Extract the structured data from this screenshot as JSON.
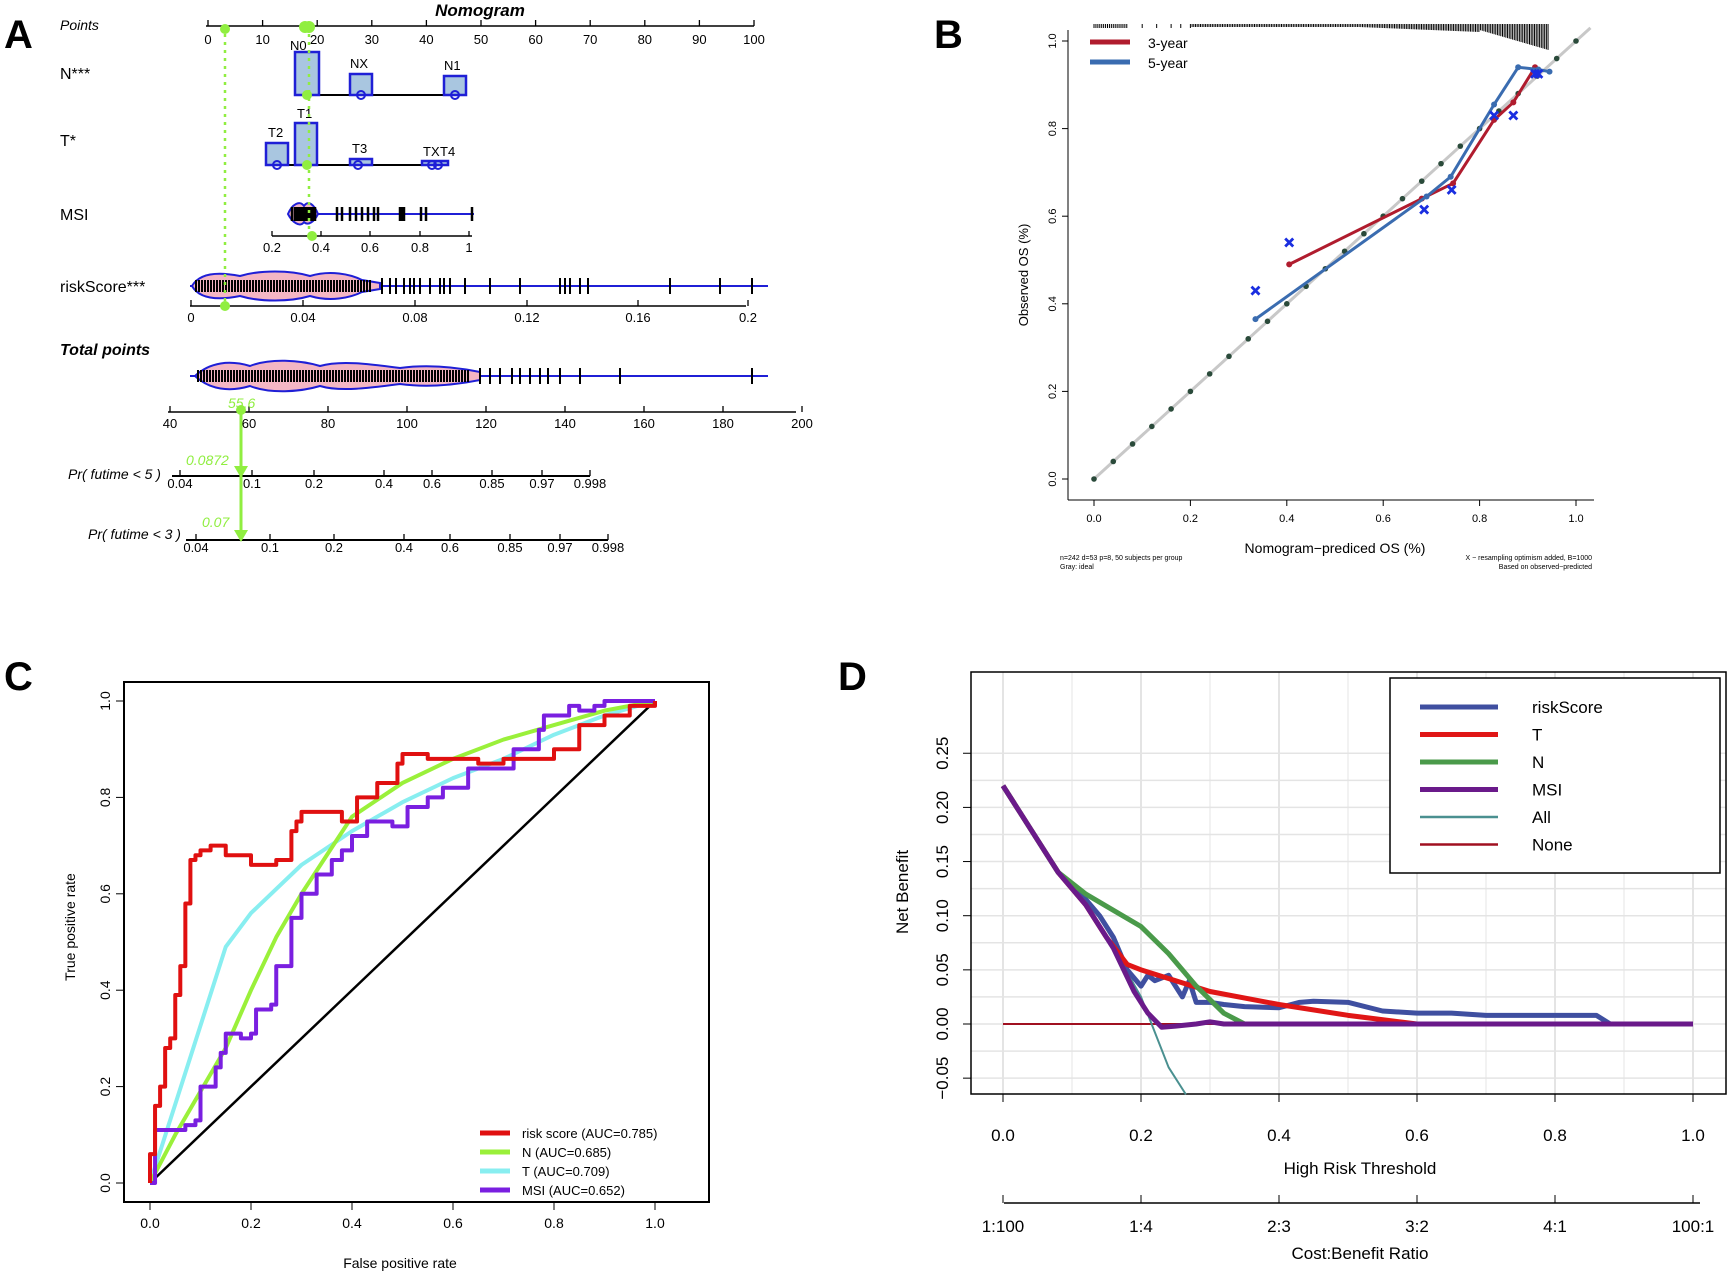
{
  "colors": {
    "blue": "#1f1fd6",
    "pink": "#f4b6c4",
    "boxfill": "#a9c6e0",
    "green": "#90ee40",
    "red3": "#b01c2e",
    "blue5": "#3a6cb0",
    "ideal": "#c8c8c8",
    "rocRed": "#e01010",
    "rocN": "#9af03a",
    "rocT": "#88eef0",
    "rocMSI": "#7a1fe0",
    "dcaRisk": "#3f4fa0",
    "dcaT": "#e01616",
    "dcaN": "#4a9a4a",
    "dcaMSI": "#6a1a8a",
    "dcaAll": "#4a9090",
    "dcaNone": "#a01020"
  },
  "panel_labels": {
    "a": "A",
    "b": "B",
    "c": "C",
    "d": "D"
  },
  "nomogram": {
    "title": "Nomogram",
    "rows": {
      "points": "Points",
      "n": "N***",
      "t": "T*",
      "msi": "MSI",
      "risk": "riskScore***",
      "total": "Total points",
      "pr5": "Pr( futime < 5 )",
      "pr3": "Pr( futime < 3 )"
    },
    "points_ticks": [
      "0",
      "10",
      "20",
      "30",
      "40",
      "50",
      "60",
      "70",
      "80",
      "90",
      "100"
    ],
    "n_levels": [
      "N0",
      "NX",
      "N1"
    ],
    "t_levels": [
      "T2",
      "T1",
      "T3",
      "TX",
      "T4"
    ],
    "msi_ticks": [
      "0.2",
      "0.4",
      "0.6",
      "0.8",
      "1"
    ],
    "risk_ticks": [
      "0",
      "0.04",
      "0.08",
      "0.12",
      "0.16",
      "0.2"
    ],
    "total_ticks": [
      "40",
      "60",
      "80",
      "100",
      "120",
      "140",
      "160",
      "180",
      "200"
    ],
    "pr_ticks": [
      "0.04",
      "0.1",
      "0.2",
      "0.4",
      "0.6",
      "0.85",
      "0.97",
      "0.998"
    ],
    "annotations": {
      "total": "55.6",
      "pr5": "0.0872",
      "pr3": "0.07"
    }
  },
  "chart_data": [
    {
      "panel": "B",
      "type": "line",
      "xlabel": "Nomogram−prediced OS (%)",
      "ylabel": "Observed OS (%)",
      "xlim": [
        0,
        1
      ],
      "ylim": [
        0,
        1
      ],
      "ticks": [
        "0.0",
        "0.2",
        "0.4",
        "0.6",
        "0.8",
        "1.0"
      ],
      "legend": [
        "3-year",
        "5-year"
      ],
      "series": [
        {
          "name": "3-year",
          "x": [
            0.405,
            0.68,
            0.745,
            0.83,
            0.87,
            0.915
          ],
          "y": [
            0.49,
            0.64,
            0.675,
            0.82,
            0.86,
            0.94
          ]
        },
        {
          "name": "5-year",
          "x": [
            0.335,
            0.69,
            0.74,
            0.83,
            0.88,
            0.922,
            0.945
          ],
          "y": [
            0.365,
            0.645,
            0.69,
            0.855,
            0.94,
            0.935,
            0.93
          ]
        }
      ],
      "crosses": {
        "x": [
          0.335,
          0.405,
          0.685,
          0.742,
          0.83,
          0.87,
          0.915,
          0.922
        ],
        "y": [
          0.43,
          0.54,
          0.615,
          0.66,
          0.83,
          0.83,
          0.925,
          0.925
        ]
      },
      "footnote_left": [
        "n=242 d=53 p=8, 50 subjects per group",
        "Gray: ideal"
      ],
      "footnote_right": [
        "X − resampling optimism added, B=1000",
        "Based on observed−predicted"
      ]
    },
    {
      "panel": "C",
      "type": "line",
      "xlabel": "False positive rate",
      "ylabel": "True positive rate",
      "xlim": [
        0,
        1
      ],
      "ylim": [
        0,
        1
      ],
      "ticks": [
        "0.0",
        "0.2",
        "0.4",
        "0.6",
        "0.8",
        "1.0"
      ],
      "series": [
        {
          "name": "risk score (AUC=0.785)",
          "x": [
            0,
            0,
            0.01,
            0.01,
            0.02,
            0.03,
            0.03,
            0.04,
            0.05,
            0.06,
            0.07,
            0.07,
            0.08,
            0.08,
            0.09,
            0.1,
            0.12,
            0.15,
            0.2,
            0.25,
            0.28,
            0.29,
            0.3,
            0.33,
            0.38,
            0.41,
            0.45,
            0.49,
            0.5,
            0.55,
            0.6,
            0.65,
            0.7,
            0.8,
            0.85,
            0.9,
            0.95,
            1
          ],
          "y": [
            0,
            0.06,
            0.11,
            0.16,
            0.2,
            0.24,
            0.28,
            0.3,
            0.39,
            0.45,
            0.5,
            0.58,
            0.63,
            0.67,
            0.68,
            0.69,
            0.7,
            0.68,
            0.66,
            0.67,
            0.73,
            0.75,
            0.77,
            0.77,
            0.75,
            0.8,
            0.83,
            0.87,
            0.89,
            0.88,
            0.88,
            0.87,
            0.88,
            0.9,
            0.95,
            0.97,
            0.99,
            1
          ]
        },
        {
          "name": "N (AUC=0.685)",
          "x": [
            0,
            0.05,
            0.1,
            0.15,
            0.2,
            0.25,
            0.3,
            0.35,
            0.4,
            0.5,
            0.6,
            0.7,
            0.8,
            0.9,
            1
          ],
          "y": [
            0,
            0.1,
            0.19,
            0.28,
            0.4,
            0.51,
            0.6,
            0.68,
            0.76,
            0.83,
            0.88,
            0.92,
            0.95,
            0.98,
            1
          ]
        },
        {
          "name": "T (AUC=0.709)",
          "x": [
            0,
            0.15,
            0.2,
            0.3,
            0.4,
            0.5,
            0.6,
            0.7,
            0.8,
            0.9,
            1
          ],
          "y": [
            0,
            0.49,
            0.56,
            0.66,
            0.73,
            0.79,
            0.84,
            0.88,
            0.93,
            0.97,
            1
          ]
        },
        {
          "name": "MSI (AUC=0.652)",
          "x": [
            0,
            0.01,
            0.01,
            0.03,
            0.07,
            0.09,
            0.1,
            0.13,
            0.14,
            0.15,
            0.18,
            0.2,
            0.21,
            0.24,
            0.25,
            0.28,
            0.3,
            0.33,
            0.36,
            0.38,
            0.4,
            0.43,
            0.48,
            0.51,
            0.55,
            0.58,
            0.63,
            0.72,
            0.77,
            0.78,
            0.83,
            0.85,
            0.88,
            0.9,
            0.94,
            1
          ],
          "y": [
            0,
            0.05,
            0.11,
            0.11,
            0.12,
            0.13,
            0.2,
            0.24,
            0.27,
            0.31,
            0.3,
            0.31,
            0.36,
            0.37,
            0.45,
            0.55,
            0.6,
            0.64,
            0.67,
            0.69,
            0.72,
            0.75,
            0.74,
            0.78,
            0.8,
            0.82,
            0.86,
            0.9,
            0.94,
            0.97,
            0.99,
            0.98,
            0.99,
            1,
            1,
            1
          ]
        }
      ],
      "legend_position": "bottom-right"
    },
    {
      "panel": "D",
      "type": "line",
      "xlabel": "High Risk Threshold",
      "ylabel": "Net Benefit",
      "xlim": [
        0,
        1
      ],
      "ylim": [
        -0.05,
        0.25
      ],
      "xticks": [
        "0.0",
        "0.2",
        "0.4",
        "0.6",
        "0.8",
        "1.0"
      ],
      "yticks": [
        "−0.05",
        "0.00",
        "0.05",
        "0.10",
        "0.15",
        "0.20",
        "0.25"
      ],
      "cost_ticks": [
        "1:100",
        "1:4",
        "2:3",
        "3:2",
        "4:1",
        "100:1"
      ],
      "cost_label": "Cost:Benefit Ratio",
      "series": [
        {
          "name": "riskScore",
          "x": [
            0,
            0.04,
            0.08,
            0.12,
            0.14,
            0.16,
            0.18,
            0.2,
            0.21,
            0.22,
            0.24,
            0.26,
            0.27,
            0.28,
            0.3,
            0.32,
            0.35,
            0.4,
            0.43,
            0.45,
            0.5,
            0.55,
            0.6,
            0.65,
            0.7,
            0.8,
            0.86,
            0.88,
            1
          ],
          "y": [
            0.22,
            0.18,
            0.14,
            0.115,
            0.1,
            0.08,
            0.05,
            0.035,
            0.045,
            0.04,
            0.045,
            0.025,
            0.04,
            0.02,
            0.02,
            0.018,
            0.016,
            0.015,
            0.02,
            0.021,
            0.02,
            0.012,
            0.01,
            0.01,
            0.008,
            0.008,
            0.008,
            0.0,
            0.0
          ]
        },
        {
          "name": "T",
          "x": [
            0,
            0.04,
            0.08,
            0.12,
            0.15,
            0.18,
            0.2,
            0.3,
            0.4,
            0.5,
            0.6,
            0.7,
            1
          ],
          "y": [
            0.22,
            0.18,
            0.14,
            0.11,
            0.08,
            0.055,
            0.05,
            0.03,
            0.018,
            0.008,
            0.0,
            0.0,
            0.0
          ]
        },
        {
          "name": "N",
          "x": [
            0,
            0.04,
            0.08,
            0.12,
            0.16,
            0.2,
            0.24,
            0.28,
            0.32,
            0.35,
            0.45,
            1
          ],
          "y": [
            0.22,
            0.18,
            0.14,
            0.12,
            0.105,
            0.09,
            0.065,
            0.035,
            0.01,
            0.0,
            0.0,
            0.0
          ]
        },
        {
          "name": "MSI",
          "x": [
            0,
            0.04,
            0.08,
            0.12,
            0.16,
            0.19,
            0.21,
            0.23,
            0.25,
            0.28,
            0.3,
            0.32,
            1
          ],
          "y": [
            0.22,
            0.18,
            0.14,
            0.11,
            0.07,
            0.03,
            0.01,
            -0.003,
            -0.002,
            0.0,
            0.002,
            0.0,
            0.0
          ]
        },
        {
          "name": "All",
          "x": [
            0,
            0.04,
            0.08,
            0.12,
            0.16,
            0.2,
            0.24,
            0.265
          ],
          "y": [
            0.22,
            0.18,
            0.14,
            0.112,
            0.07,
            0.025,
            -0.04,
            -0.065
          ]
        },
        {
          "name": "None",
          "x": [
            0,
            1
          ],
          "y": [
            0,
            0
          ]
        }
      ],
      "legend_position": "top-right"
    }
  ]
}
